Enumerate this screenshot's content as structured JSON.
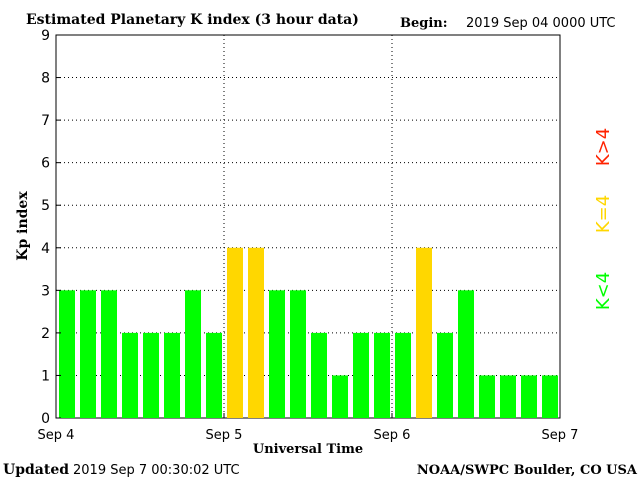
{
  "header": {
    "title": "Estimated Planetary K index (3 hour data)",
    "begin_label": "Begin:",
    "begin_value": "2019 Sep 04 0000 UTC"
  },
  "footer": {
    "updated_label": "Updated",
    "updated_value": "2019 Sep  7 00:30:02 UTC",
    "credit": "NOAA/SWPC Boulder, CO USA"
  },
  "legend": {
    "items": [
      {
        "label": "K<4",
        "color": "#00ff00"
      },
      {
        "label": "K=4",
        "color": "#ffd700"
      },
      {
        "label": "K>4",
        "color": "#ff2200"
      }
    ]
  },
  "colors": {
    "below": "#00ff00",
    "equal": "#ffd700",
    "above": "#ff2200"
  },
  "chart_data": {
    "type": "bar",
    "title": "Estimated Planetary K index (3 hour data)",
    "xlabel": "Universal Time",
    "ylabel": "Kp index",
    "ylim": [
      0,
      9
    ],
    "yticks": [
      "0",
      "1",
      "2",
      "3",
      "4",
      "5",
      "6",
      "7",
      "8",
      "9"
    ],
    "xticks": [
      "Sep 4",
      "Sep 5",
      "Sep 6",
      "Sep 7"
    ],
    "grid": true,
    "interval_hours": 3,
    "values": [
      3,
      3,
      3,
      2,
      2,
      2,
      3,
      2,
      4,
      4,
      3,
      3,
      2,
      1,
      2,
      2,
      2,
      4,
      2,
      3,
      1,
      1,
      1,
      1
    ]
  }
}
